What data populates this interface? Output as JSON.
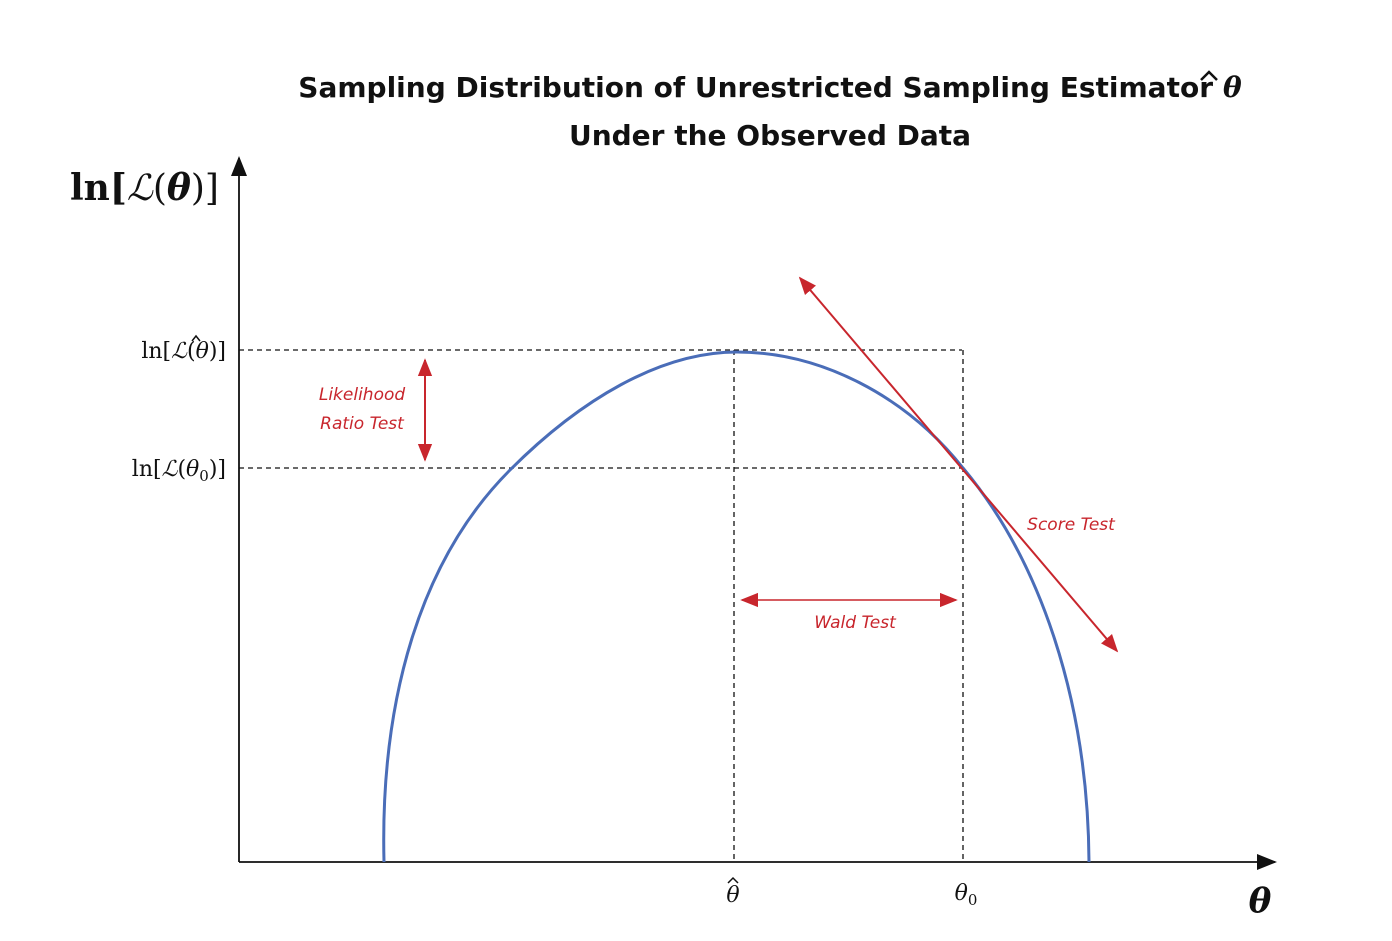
{
  "title": {
    "line1": "Sampling Distribution of Unrestricted Sampling Estimator",
    "line1_symbol": "θ",
    "line2": "Under the Observed Data"
  },
  "axes": {
    "y_label": {
      "prefix": "ln[",
      "script": "ℒ",
      "open": "(",
      "symbol": "θ",
      "close": ")]"
    },
    "x_label": "θ"
  },
  "y_ticks": {
    "max": {
      "prefix": "ln[",
      "script": "ℒ",
      "open": "(",
      "symbol": "θ",
      "close": ")]"
    },
    "null": {
      "prefix": "ln[",
      "script": "ℒ",
      "open": "(",
      "symbol": "θ",
      "subscript": "0",
      "close": ")]"
    }
  },
  "x_ticks": {
    "hat": "θ",
    "null": {
      "symbol": "θ",
      "subscript": "0"
    }
  },
  "annotations": {
    "lr_test_line1": "Likelihood",
    "lr_test_line2": "Ratio Test",
    "wald_test": "Wald Test",
    "score_test": "Score Test"
  },
  "colors": {
    "curve": "#4a6db8",
    "annotation": "#c8262d",
    "axes": "#111111"
  }
}
